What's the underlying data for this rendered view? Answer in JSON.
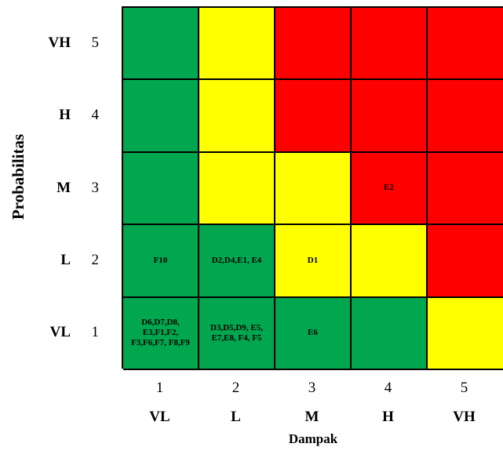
{
  "axes": {
    "y_title": "Probabilitas",
    "x_title": "Dampak"
  },
  "rows": [
    {
      "level": "VH",
      "number": "5"
    },
    {
      "level": "H",
      "number": "4"
    },
    {
      "level": "M",
      "number": "3"
    },
    {
      "level": "L",
      "number": "2"
    },
    {
      "level": "VL",
      "number": "1"
    }
  ],
  "columns": [
    {
      "level": "VL",
      "number": "1"
    },
    {
      "level": "L",
      "number": "2"
    },
    {
      "level": "M",
      "number": "3"
    },
    {
      "level": "H",
      "number": "4"
    },
    {
      "level": "VH",
      "number": "5"
    }
  ],
  "colors": {
    "green": "#00a74f",
    "yellow": "#ffff00",
    "red": "#ff0000"
  },
  "matrix": [
    [
      {
        "color": "green",
        "text": ""
      },
      {
        "color": "yellow",
        "text": ""
      },
      {
        "color": "red",
        "text": ""
      },
      {
        "color": "red",
        "text": ""
      },
      {
        "color": "red",
        "text": ""
      }
    ],
    [
      {
        "color": "green",
        "text": ""
      },
      {
        "color": "yellow",
        "text": ""
      },
      {
        "color": "red",
        "text": ""
      },
      {
        "color": "red",
        "text": ""
      },
      {
        "color": "red",
        "text": ""
      }
    ],
    [
      {
        "color": "green",
        "text": ""
      },
      {
        "color": "yellow",
        "text": ""
      },
      {
        "color": "yellow",
        "text": ""
      },
      {
        "color": "red",
        "text": "E2"
      },
      {
        "color": "red",
        "text": ""
      }
    ],
    [
      {
        "color": "green",
        "text": "F10"
      },
      {
        "color": "green",
        "text": "D2,D4,E1, E4"
      },
      {
        "color": "yellow",
        "text": "D1"
      },
      {
        "color": "yellow",
        "text": ""
      },
      {
        "color": "red",
        "text": ""
      }
    ],
    [
      {
        "color": "green",
        "text": "D6,D7,D8, E3,F1,F2, F3,F6,F7, F8,F9"
      },
      {
        "color": "green",
        "text": "D3,D5,D9, E5, E7,E8, F4, F5"
      },
      {
        "color": "green",
        "text": "E6"
      },
      {
        "color": "green",
        "text": ""
      },
      {
        "color": "yellow",
        "text": ""
      }
    ]
  ]
}
